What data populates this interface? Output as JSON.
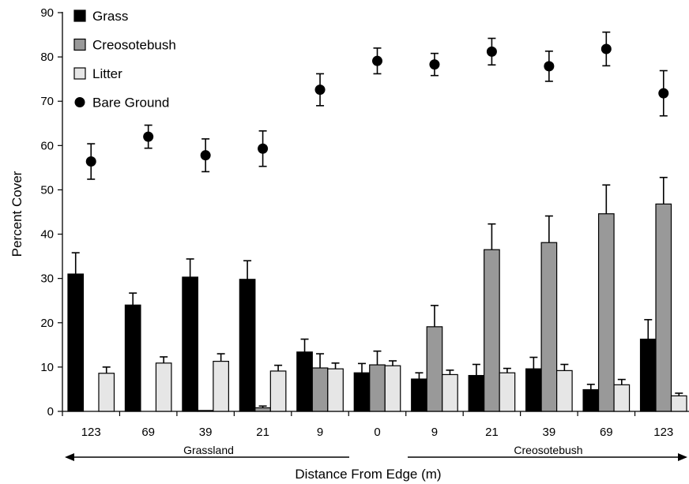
{
  "chart_data": {
    "type": "bar",
    "xlabel": "Distance From Edge (m)",
    "ylabel": "Percent Cover",
    "ylim": [
      0,
      90
    ],
    "yticks": [
      0,
      10,
      20,
      30,
      40,
      50,
      60,
      70,
      80,
      90
    ],
    "categories": [
      "123",
      "69",
      "39",
      "21",
      "9",
      "0",
      "9",
      "21",
      "39",
      "69",
      "123"
    ],
    "regions": [
      {
        "label": "Grassland",
        "direction": "left"
      },
      {
        "label": "Creosotebush",
        "direction": "right"
      }
    ],
    "legend_position": "top-left",
    "grid": false,
    "series": [
      {
        "name": "Grass",
        "kind": "bar",
        "color": "#000000",
        "values": [
          31.0,
          24.0,
          30.3,
          29.8,
          13.4,
          8.7,
          7.3,
          8.1,
          9.6,
          4.9,
          16.3
        ],
        "errors": [
          4.8,
          2.7,
          4.1,
          4.2,
          2.9,
          2.1,
          1.4,
          2.5,
          2.6,
          1.2,
          4.4
        ]
      },
      {
        "name": "Creosotebush",
        "kind": "bar",
        "color": "#999999",
        "values": [
          0.0,
          0.0,
          0.2,
          0.8,
          9.8,
          10.5,
          19.1,
          36.5,
          38.1,
          44.6,
          46.8
        ],
        "errors": [
          0.0,
          0.0,
          0.0,
          0.4,
          3.2,
          3.1,
          4.8,
          5.8,
          6.0,
          6.5,
          6.0
        ]
      },
      {
        "name": "Litter",
        "kind": "bar",
        "color": "#e6e6e6",
        "values": [
          8.6,
          10.9,
          11.3,
          9.1,
          9.6,
          10.3,
          8.3,
          8.7,
          9.2,
          6.0,
          3.5
        ],
        "errors": [
          1.4,
          1.4,
          1.7,
          1.3,
          1.3,
          1.1,
          1.0,
          1.0,
          1.4,
          1.2,
          0.6
        ]
      },
      {
        "name": "Bare Ground",
        "kind": "point",
        "color": "#000000",
        "values": [
          56.4,
          62.0,
          57.8,
          59.3,
          72.6,
          79.1,
          78.3,
          81.2,
          77.9,
          81.8,
          71.8
        ],
        "errors": [
          4.0,
          2.6,
          3.7,
          4.0,
          3.6,
          2.9,
          2.5,
          3.0,
          3.4,
          3.8,
          5.1
        ]
      }
    ]
  }
}
